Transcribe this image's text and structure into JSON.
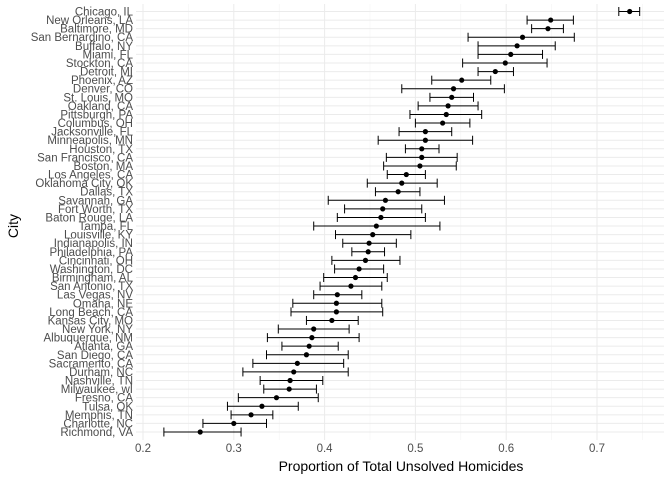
{
  "chart_data": {
    "type": "scatter",
    "subtype": "point-range",
    "xlabel": "Proportion of Total Unsolved Homicides",
    "ylabel": "City",
    "xlim": [
      0.2,
      0.75
    ],
    "x_ticks": [
      0.2,
      0.3,
      0.4,
      0.5,
      0.6,
      0.7
    ],
    "grid": true,
    "legend": "none",
    "point_color": "#000000",
    "grid_color": "#ebebeb",
    "points": [
      {
        "city": "Chicago, IL",
        "estimate": 0.736,
        "low": 0.724,
        "high": 0.747
      },
      {
        "city": "New Orleans, LA",
        "estimate": 0.649,
        "low": 0.623,
        "high": 0.674
      },
      {
        "city": "Baltimore, MD",
        "estimate": 0.646,
        "low": 0.628,
        "high": 0.663
      },
      {
        "city": "San Bernardino, CA",
        "estimate": 0.618,
        "low": 0.558,
        "high": 0.675
      },
      {
        "city": "Buffalo, NY",
        "estimate": 0.612,
        "low": 0.569,
        "high": 0.654
      },
      {
        "city": "Miami, FL",
        "estimate": 0.605,
        "low": 0.569,
        "high": 0.64
      },
      {
        "city": "Stockton, CA",
        "estimate": 0.599,
        "low": 0.552,
        "high": 0.645
      },
      {
        "city": "Detroit, MI",
        "estimate": 0.588,
        "low": 0.569,
        "high": 0.608
      },
      {
        "city": "Phoenix, AZ",
        "estimate": 0.551,
        "low": 0.518,
        "high": 0.583
      },
      {
        "city": "Denver, CO",
        "estimate": 0.542,
        "low": 0.485,
        "high": 0.598
      },
      {
        "city": "St. Louis, MO",
        "estimate": 0.54,
        "low": 0.516,
        "high": 0.564
      },
      {
        "city": "Oakland, CA",
        "estimate": 0.536,
        "low": 0.503,
        "high": 0.569
      },
      {
        "city": "Pittsburgh, PA",
        "estimate": 0.534,
        "low": 0.494,
        "high": 0.573
      },
      {
        "city": "Columbus, OH",
        "estimate": 0.53,
        "low": 0.5,
        "high": 0.56
      },
      {
        "city": "Jacksonville, FL",
        "estimate": 0.511,
        "low": 0.482,
        "high": 0.54
      },
      {
        "city": "Minneapolis, MN",
        "estimate": 0.511,
        "low": 0.459,
        "high": 0.563
      },
      {
        "city": "Houston, TX",
        "estimate": 0.507,
        "low": 0.489,
        "high": 0.526
      },
      {
        "city": "San Francisco, CA",
        "estimate": 0.507,
        "low": 0.468,
        "high": 0.546
      },
      {
        "city": "Boston, MA",
        "estimate": 0.505,
        "low": 0.465,
        "high": 0.545
      },
      {
        "city": "Los Angeles, CA",
        "estimate": 0.49,
        "low": 0.469,
        "high": 0.511
      },
      {
        "city": "Oklahoma City, OK",
        "estimate": 0.485,
        "low": 0.447,
        "high": 0.524
      },
      {
        "city": "Dallas, TX",
        "estimate": 0.481,
        "low": 0.456,
        "high": 0.505
      },
      {
        "city": "Savannah, GA",
        "estimate": 0.467,
        "low": 0.404,
        "high": 0.532
      },
      {
        "city": "Fort Worth, TX",
        "estimate": 0.464,
        "low": 0.422,
        "high": 0.507
      },
      {
        "city": "Baton Rouge, LA",
        "estimate": 0.462,
        "low": 0.414,
        "high": 0.511
      },
      {
        "city": "Tampa, FL",
        "estimate": 0.457,
        "low": 0.388,
        "high": 0.527
      },
      {
        "city": "Louisville, KY",
        "estimate": 0.453,
        "low": 0.412,
        "high": 0.495
      },
      {
        "city": "Indianapolis, IN",
        "estimate": 0.449,
        "low": 0.42,
        "high": 0.479
      },
      {
        "city": "Philadelphia, PA",
        "estimate": 0.448,
        "low": 0.43,
        "high": 0.466
      },
      {
        "city": "Cincinnati, OH",
        "estimate": 0.445,
        "low": 0.408,
        "high": 0.483
      },
      {
        "city": "Washington, DC",
        "estimate": 0.438,
        "low": 0.411,
        "high": 0.465
      },
      {
        "city": "Birmingham, AL",
        "estimate": 0.434,
        "low": 0.399,
        "high": 0.469
      },
      {
        "city": "San Antonio, TX",
        "estimate": 0.429,
        "low": 0.395,
        "high": 0.463
      },
      {
        "city": "Las Vegas, NV",
        "estimate": 0.414,
        "low": 0.388,
        "high": 0.441
      },
      {
        "city": "Omaha, NE",
        "estimate": 0.413,
        "low": 0.365,
        "high": 0.463
      },
      {
        "city": "Long Beach, CA",
        "estimate": 0.413,
        "low": 0.363,
        "high": 0.464
      },
      {
        "city": "Kansas City, MO",
        "estimate": 0.408,
        "low": 0.38,
        "high": 0.437
      },
      {
        "city": "New York, NY",
        "estimate": 0.388,
        "low": 0.349,
        "high": 0.427
      },
      {
        "city": "Albuquerque, NM",
        "estimate": 0.386,
        "low": 0.337,
        "high": 0.438
      },
      {
        "city": "Atlanta, GA",
        "estimate": 0.383,
        "low": 0.353,
        "high": 0.415
      },
      {
        "city": "San Diego, CA",
        "estimate": 0.38,
        "low": 0.336,
        "high": 0.426
      },
      {
        "city": "Sacramento, CA",
        "estimate": 0.37,
        "low": 0.321,
        "high": 0.421
      },
      {
        "city": "Durham, NC",
        "estimate": 0.366,
        "low": 0.31,
        "high": 0.426
      },
      {
        "city": "Nashville, TN",
        "estimate": 0.362,
        "low": 0.329,
        "high": 0.398
      },
      {
        "city": "Milwaukee, wI",
        "estimate": 0.361,
        "low": 0.333,
        "high": 0.391
      },
      {
        "city": "Fresno, CA",
        "estimate": 0.347,
        "low": 0.305,
        "high": 0.393
      },
      {
        "city": "Tulsa, OK",
        "estimate": 0.331,
        "low": 0.293,
        "high": 0.371
      },
      {
        "city": "Memphis, TN",
        "estimate": 0.319,
        "low": 0.297,
        "high": 0.343
      },
      {
        "city": "Charlotte, NC",
        "estimate": 0.3,
        "low": 0.266,
        "high": 0.336
      },
      {
        "city": "Richmond, VA",
        "estimate": 0.263,
        "low": 0.223,
        "high": 0.308
      }
    ]
  }
}
